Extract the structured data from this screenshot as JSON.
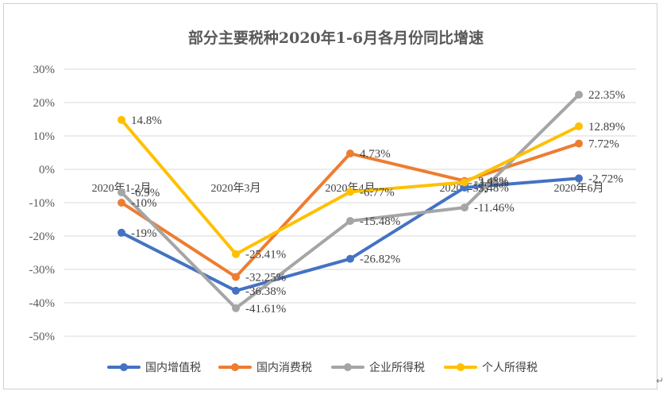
{
  "chart_data": {
    "type": "line",
    "title": "部分主要税种2020年1-6月各月份同比增速",
    "categories": [
      "2020年1-2月",
      "2020年3月",
      "2020年4月",
      "2020年5月",
      "2020年6月"
    ],
    "ylim": [
      -50,
      30
    ],
    "yticks": [
      30,
      20,
      10,
      0,
      -10,
      -20,
      -30,
      -40,
      -50
    ],
    "ytick_labels": [
      "30%",
      "20%",
      "10%",
      "0%",
      "-10%",
      "-20%",
      "-30%",
      "-40%",
      "-50%"
    ],
    "grid": true,
    "legend_position": "bottom",
    "series": [
      {
        "name": "国内增值税",
        "color": "#4472c4",
        "values": [
          -19,
          -36.38,
          -26.82,
          -5.48,
          -2.72
        ],
        "labels": [
          "-19%",
          "-36.38%",
          "-26.82%",
          "-5.48%",
          "-2.72%"
        ]
      },
      {
        "name": "国内消费税",
        "color": "#ed7d31",
        "values": [
          -10,
          -32.25,
          4.73,
          -3.48,
          7.72
        ],
        "labels": [
          "-10%",
          "-32.25%",
          "4.73%",
          "-3.48%",
          "7.72%"
        ]
      },
      {
        "name": "企业所得税",
        "color": "#a5a5a5",
        "values": [
          -6.9,
          -41.61,
          -15.48,
          -11.46,
          22.35
        ],
        "labels": [
          "-6.9%",
          "-41.61%",
          "-15.48%",
          "-11.46%",
          "22.35%"
        ]
      },
      {
        "name": "个人所得税",
        "color": "#ffc000",
        "values": [
          14.8,
          -25.41,
          -6.77,
          -3.91,
          12.89
        ],
        "labels": [
          "14.8%",
          "-25.41%",
          "-6.77%",
          "-3.91%",
          "12.89%"
        ]
      }
    ]
  },
  "corner_mark": "↵"
}
